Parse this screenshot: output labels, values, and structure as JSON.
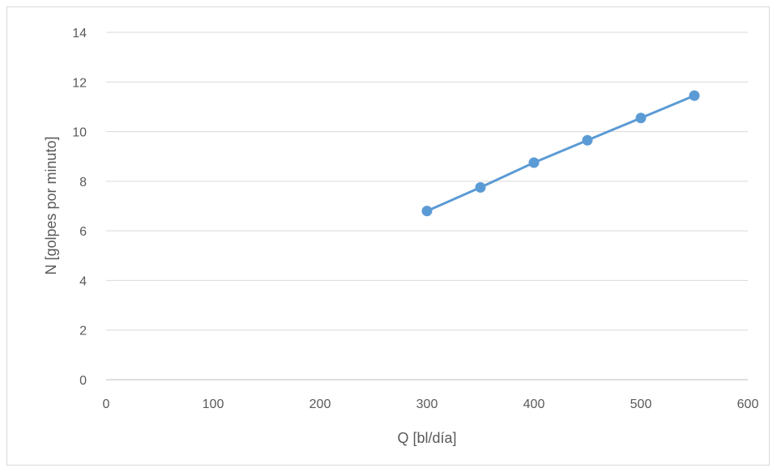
{
  "chart_data": {
    "type": "line",
    "title": "",
    "xlabel": "Q [bl/día]",
    "ylabel": "N [golpes por minuto]",
    "xlim": [
      0,
      600
    ],
    "ylim": [
      0,
      14
    ],
    "x_ticks": [
      0,
      100,
      200,
      300,
      400,
      500,
      600
    ],
    "y_ticks": [
      0,
      2,
      4,
      6,
      8,
      10,
      12,
      14
    ],
    "grid": "horizontal",
    "legend": "none",
    "series": [
      {
        "color": "#5b9bd5",
        "x": [
          300,
          350,
          400,
          450,
          500,
          550
        ],
        "y": [
          6.8,
          7.75,
          8.75,
          9.65,
          10.55,
          11.45
        ],
        "marker": "circle"
      }
    ]
  },
  "colors": {
    "gridline": "#d9d9d9",
    "axis": "#bfbfbf",
    "text": "#595959",
    "series": "#5b9bd5"
  }
}
